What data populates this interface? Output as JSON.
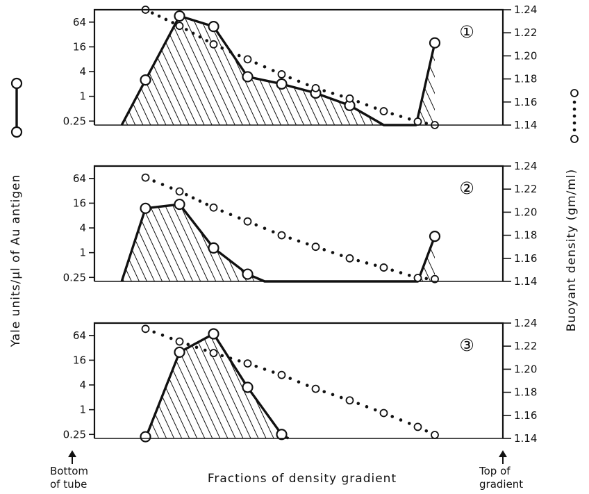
{
  "chart_data": {
    "type": "line",
    "ylabel_left": "Yale units/µl of Au antigen",
    "ylabel_right": "Buoyant density (gm/ml)",
    "xlabel": "Fractions of density gradient",
    "x_annotations": {
      "left": [
        "Bottom",
        "of tube"
      ],
      "right": [
        "Top of",
        "gradient"
      ]
    },
    "left_axis": {
      "scale": "log2",
      "ticks": [
        0.25,
        1,
        4,
        16,
        64
      ],
      "tick_labels": [
        "0.25",
        "1",
        "4",
        "16",
        "64"
      ],
      "ylim": [
        0.2,
        128
      ]
    },
    "right_axis": {
      "ticks": [
        1.14,
        1.16,
        1.18,
        1.2,
        1.22,
        1.24
      ],
      "tick_labels": [
        "1.14",
        "1.16",
        "1.18",
        "1.20",
        "1.22",
        "1.24"
      ],
      "ylim": [
        1.14,
        1.24
      ]
    },
    "xlim": [
      0,
      12
    ],
    "panels": [
      {
        "label": "①",
        "antigen": {
          "x": [
            0.8,
            1.5,
            2.5,
            3.5,
            4.5,
            5.5,
            6.5,
            7.5,
            8.5,
            9.45,
            10.0
          ],
          "y": [
            0.2,
            2.5,
            90,
            50,
            3,
            2,
            1.2,
            0.6,
            0.2,
            0.2,
            20
          ]
        },
        "density": {
          "x": [
            1.5,
            2.5,
            3.5,
            4.5,
            5.5,
            6.5,
            7.5,
            8.5,
            9.5,
            10.0
          ],
          "y": [
            1.24,
            1.226,
            1.21,
            1.197,
            1.184,
            1.172,
            1.163,
            1.152,
            1.143,
            1.14
          ]
        }
      },
      {
        "label": "②",
        "antigen": {
          "x": [
            0.8,
            1.5,
            2.5,
            3.5,
            4.5,
            5.0,
            9.5,
            10.0
          ],
          "y": [
            0.2,
            12,
            15,
            1.3,
            0.3,
            0.2,
            0.2,
            2.5
          ]
        },
        "density": {
          "x": [
            1.5,
            2.5,
            3.5,
            4.5,
            5.5,
            6.5,
            7.5,
            8.5,
            9.5,
            10.0
          ],
          "y": [
            1.23,
            1.218,
            1.204,
            1.192,
            1.18,
            1.17,
            1.16,
            1.152,
            1.143,
            1.142
          ]
        }
      },
      {
        "label": "③",
        "antigen": {
          "x": [
            1.5,
            2.5,
            3.5,
            4.5,
            5.5,
            5.7
          ],
          "y": [
            0.2,
            25,
            70,
            3.5,
            0.25,
            0.2
          ]
        },
        "density": {
          "x": [
            1.5,
            2.5,
            3.5,
            4.5,
            5.5,
            6.5,
            7.5,
            8.5,
            9.5,
            10.0
          ],
          "y": [
            1.235,
            1.224,
            1.214,
            1.205,
            1.195,
            1.183,
            1.173,
            1.162,
            1.15,
            1.143
          ]
        }
      }
    ]
  }
}
